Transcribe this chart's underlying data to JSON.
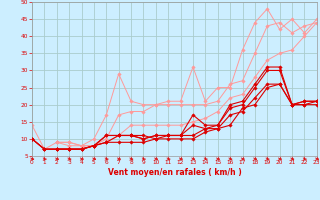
{
  "bg_color": "#cceeff",
  "grid_color": "#aacccc",
  "line_color_light": "#ff9999",
  "line_color_dark": "#dd0000",
  "xlabel": "Vent moyen/en rafales ( km/h )",
  "xlim": [
    0,
    23
  ],
  "ylim": [
    5,
    50
  ],
  "yticks": [
    5,
    10,
    15,
    20,
    25,
    30,
    35,
    40,
    45,
    50
  ],
  "xticks": [
    0,
    1,
    2,
    3,
    4,
    5,
    6,
    7,
    8,
    9,
    10,
    11,
    12,
    13,
    14,
    15,
    16,
    17,
    18,
    19,
    20,
    21,
    22,
    23
  ],
  "series_light": [
    {
      "x": [
        0,
        1,
        2,
        3,
        4,
        5,
        6,
        7,
        8,
        9,
        10,
        11,
        12,
        13,
        14,
        15,
        16,
        17,
        18,
        19,
        20,
        21,
        22,
        23
      ],
      "y": [
        14,
        7,
        9,
        8,
        8,
        10,
        17,
        29,
        21,
        20,
        20,
        21,
        21,
        31,
        21,
        25,
        25,
        36,
        44,
        48,
        42,
        45,
        41,
        45
      ]
    },
    {
      "x": [
        2,
        3,
        4,
        5,
        6,
        7,
        8,
        9,
        10,
        11,
        12,
        13,
        14,
        15,
        16,
        17,
        18,
        19,
        20,
        21,
        22,
        23
      ],
      "y": [
        9,
        9,
        8,
        8,
        10,
        17,
        18,
        18,
        20,
        20,
        20,
        20,
        20,
        21,
        26,
        27,
        35,
        43,
        44,
        41,
        43,
        44
      ]
    },
    {
      "x": [
        2,
        3,
        4,
        5,
        6,
        7,
        8,
        9,
        10,
        11,
        12,
        13,
        14,
        15,
        16,
        17,
        18,
        19,
        20,
        21,
        22,
        23
      ],
      "y": [
        9,
        9,
        8,
        8,
        9,
        11,
        14,
        14,
        14,
        14,
        14,
        15,
        16,
        18,
        22,
        23,
        28,
        33,
        35,
        36,
        40,
        44
      ]
    }
  ],
  "series_dark": [
    {
      "x": [
        0,
        1,
        2,
        3,
        4,
        5,
        6,
        7,
        8,
        9,
        10,
        11,
        12,
        13,
        14,
        15,
        16,
        17,
        18,
        19,
        20,
        21,
        22,
        23
      ],
      "y": [
        10,
        7,
        7,
        7,
        7,
        8,
        11,
        11,
        11,
        10,
        11,
        11,
        11,
        17,
        14,
        14,
        20,
        21,
        26,
        31,
        31,
        20,
        21,
        21
      ]
    },
    {
      "x": [
        0,
        1,
        2,
        3,
        4,
        5,
        6,
        7,
        8,
        9,
        10,
        11,
        12,
        13,
        14,
        15,
        16,
        17,
        18,
        19,
        20,
        21,
        22,
        23
      ],
      "y": [
        10,
        7,
        7,
        7,
        7,
        8,
        11,
        11,
        11,
        10,
        11,
        11,
        11,
        11,
        13,
        14,
        19,
        20,
        25,
        30,
        30,
        20,
        21,
        21
      ]
    },
    {
      "x": [
        2,
        3,
        4,
        5,
        6,
        7,
        8,
        9,
        10,
        11,
        12,
        13,
        14,
        15,
        16,
        17,
        18,
        19,
        20,
        21,
        22,
        23
      ],
      "y": [
        7,
        7,
        7,
        8,
        9,
        11,
        11,
        11,
        10,
        11,
        11,
        14,
        13,
        13,
        14,
        19,
        20,
        25,
        26,
        20,
        20,
        21
      ]
    },
    {
      "x": [
        0,
        1,
        2,
        3,
        4,
        5,
        6,
        7,
        8,
        9,
        10,
        11,
        12,
        13,
        14,
        15,
        16,
        17,
        18,
        19,
        20,
        21,
        22,
        23
      ],
      "y": [
        10,
        7,
        7,
        7,
        7,
        8,
        9,
        9,
        9,
        9,
        10,
        10,
        10,
        10,
        12,
        13,
        17,
        18,
        22,
        26,
        26,
        20,
        20,
        20
      ]
    }
  ],
  "marker": "D",
  "markersize": 1.8,
  "linewidth_light": 0.7,
  "linewidth_dark": 0.8,
  "tick_fontsize": 4.2,
  "xlabel_fontsize": 5.5
}
